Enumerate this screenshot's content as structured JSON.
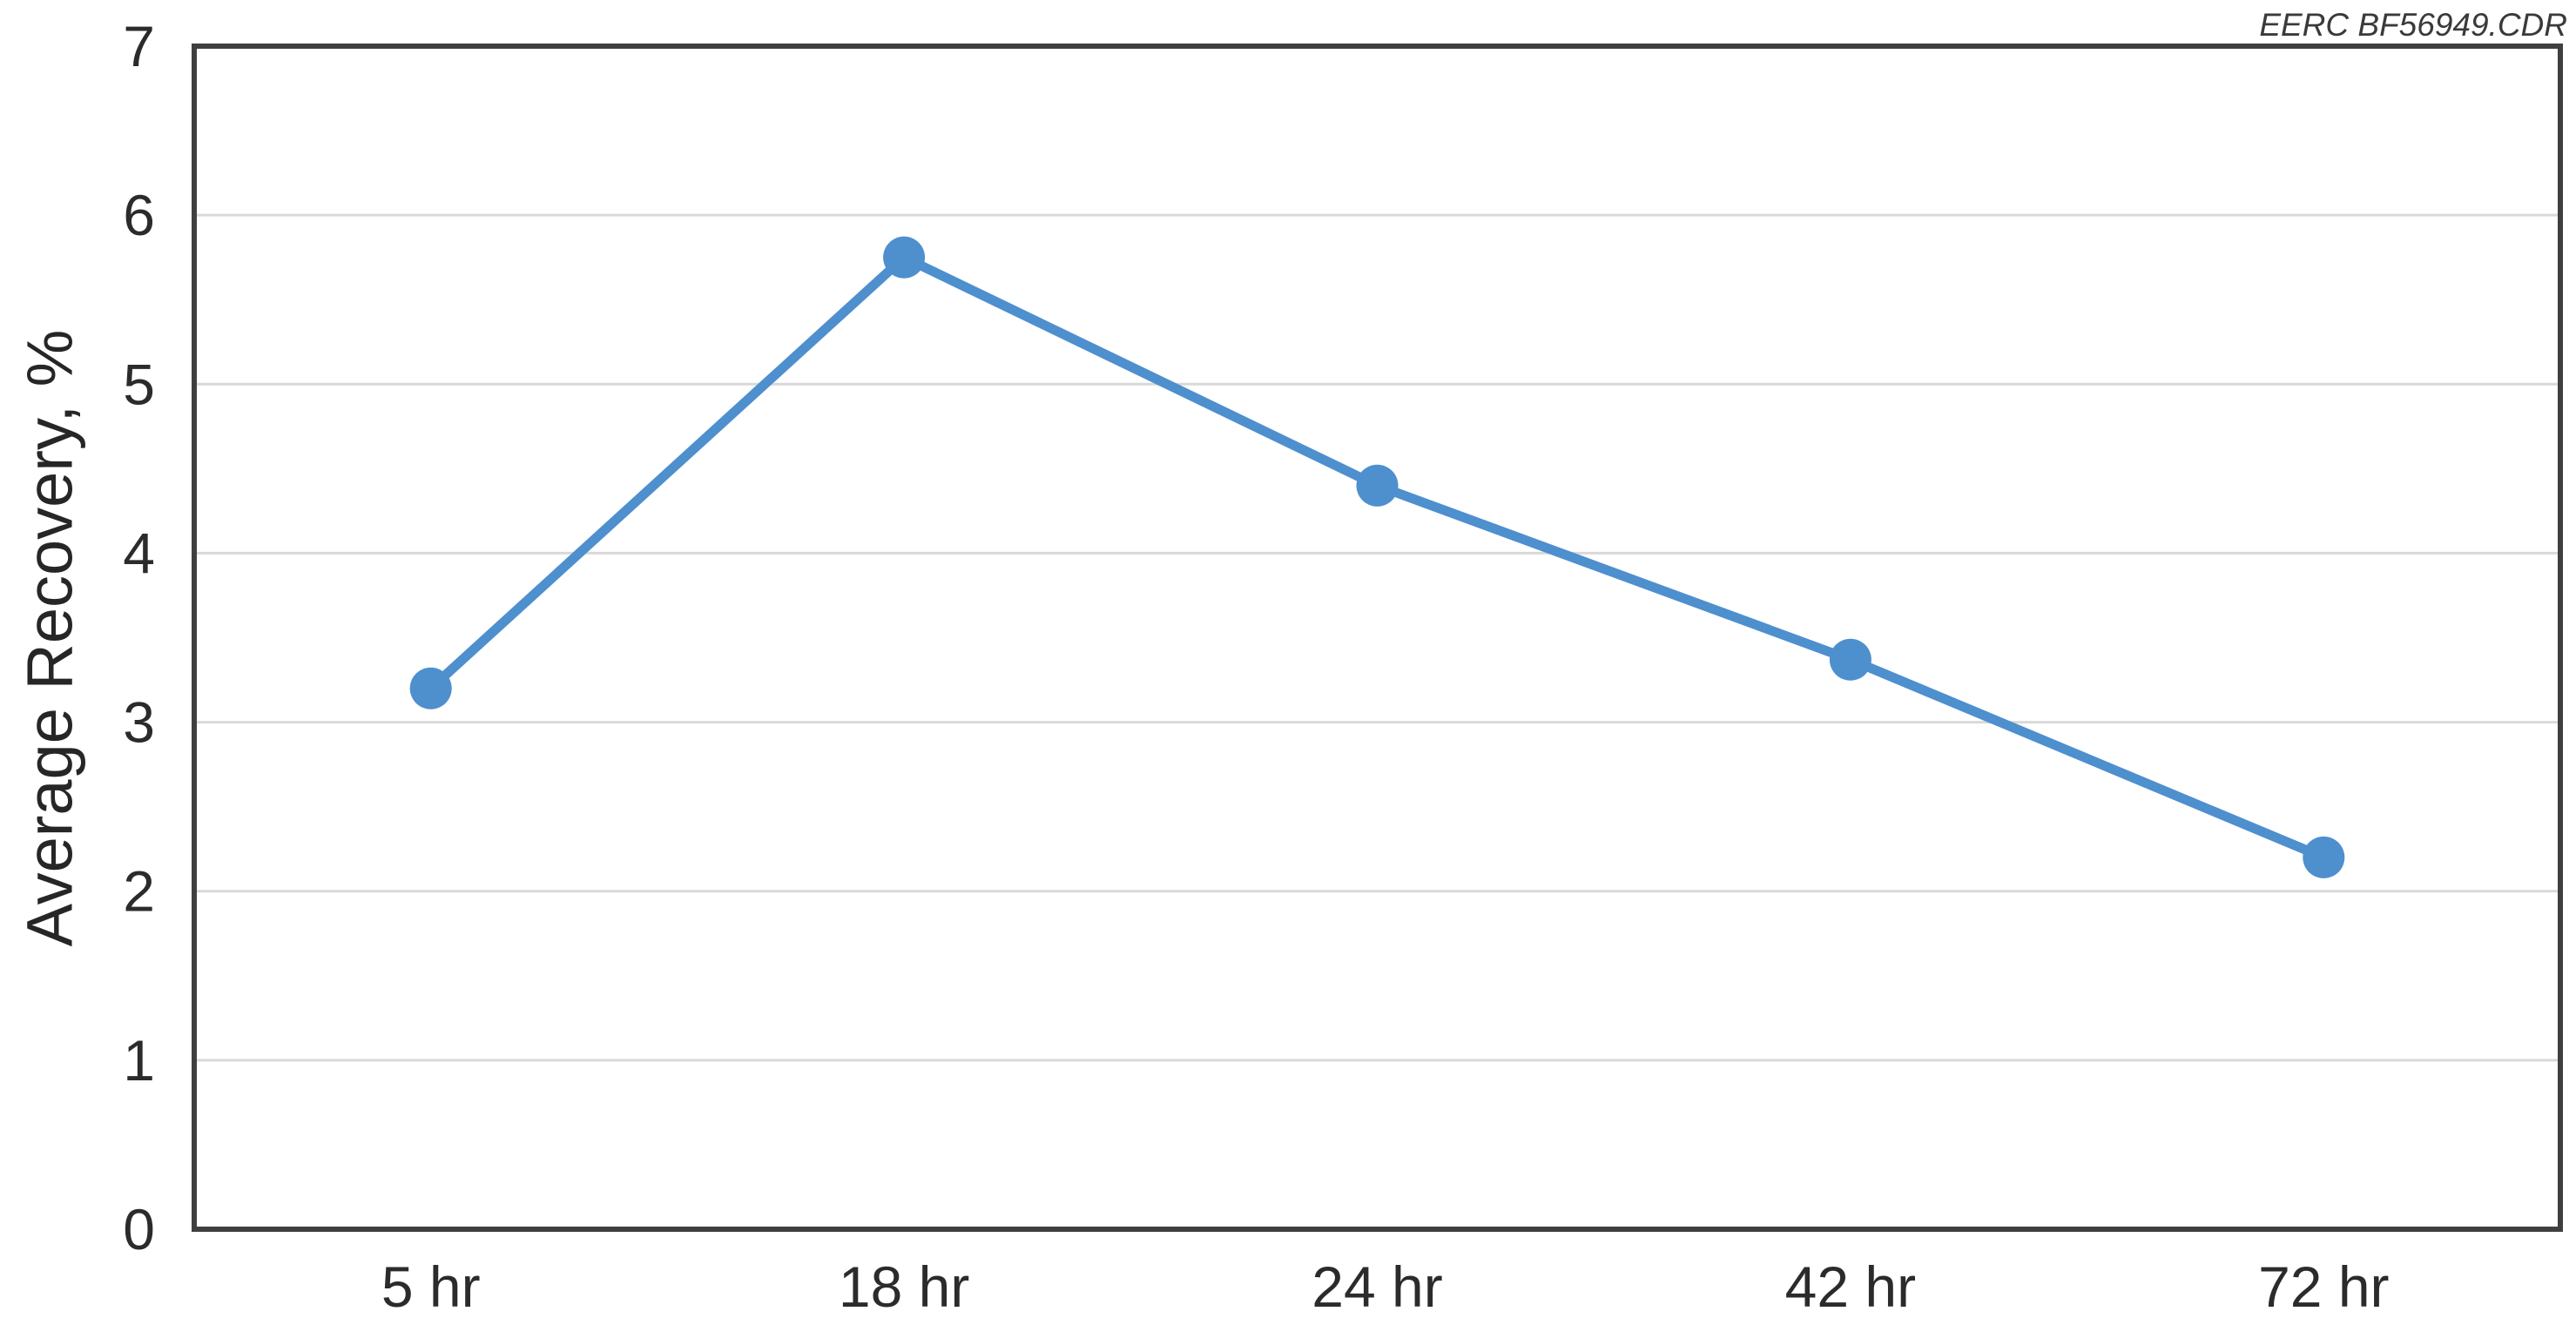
{
  "watermark": "EERC BF56949.CDR",
  "chart_data": {
    "type": "line",
    "title": "",
    "categories": [
      "5 hr",
      "18 hr",
      "24 hr",
      "42 hr",
      "72 hr"
    ],
    "series": [
      {
        "name": "Average Recovery",
        "values": [
          3.2,
          5.75,
          4.4,
          3.37,
          2.2
        ]
      }
    ],
    "xlabel": "",
    "ylabel": "Average Recovery, %",
    "ylim": [
      0,
      7
    ],
    "yticks": [
      0,
      1,
      2,
      3,
      4,
      5,
      6,
      7
    ],
    "grid": true,
    "legend_position": "none",
    "marker": "circle",
    "colors": {
      "line": "#4E8FCE",
      "grid": "#D9D9D9",
      "frame": "#3F3F3F",
      "text": "#2B2B2B"
    }
  }
}
